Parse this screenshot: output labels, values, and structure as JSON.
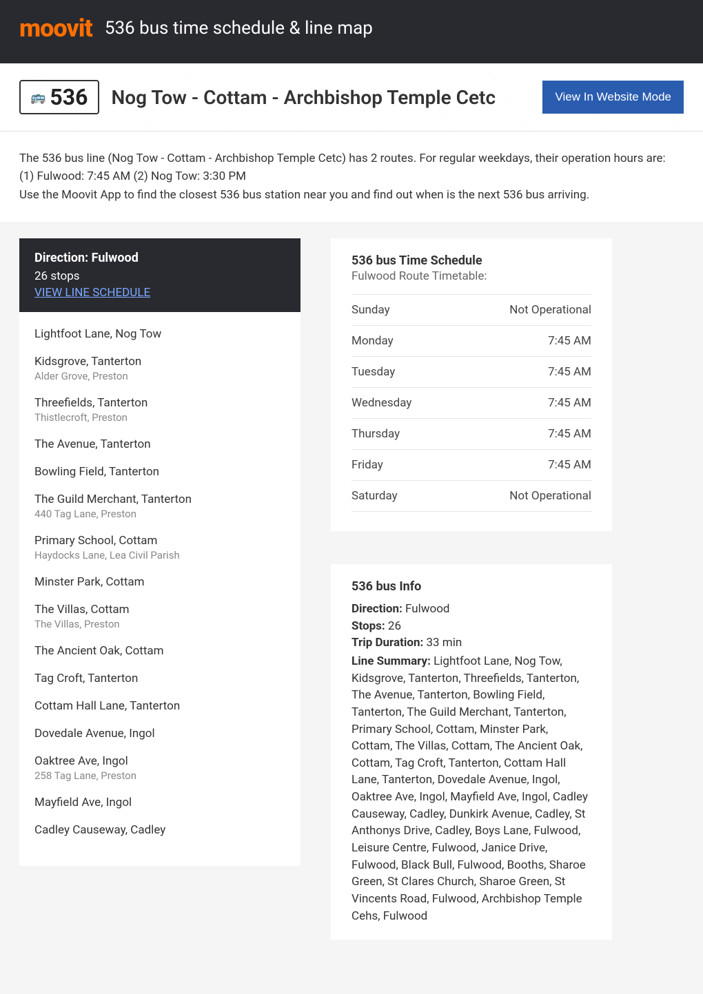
{
  "colors": {
    "header_bg": "#292a30",
    "logo": "#ff6f00",
    "btn_bg": "#2a5db0",
    "link": "#7aa8ff",
    "text": "#333333",
    "muted": "#888888",
    "border": "#e5e5e5",
    "page_bg": "#f5f5f5",
    "white": "#ffffff"
  },
  "header": {
    "logo_text": "moovit",
    "title": "536 bus time schedule & line map"
  },
  "subheader": {
    "route_number": "536",
    "route_name": "Nog Tow - Cottam - Archbishop Temple Cetc",
    "website_btn": "View In Website Mode"
  },
  "intro": {
    "p1": "The 536 bus line (Nog Tow - Cottam - Archbishop Temple Cetc) has 2 routes. For regular weekdays, their operation hours are:",
    "p2": "(1) Fulwood: 7:45 AM (2) Nog Tow: 3:30 PM",
    "p3": "Use the Moovit App to find the closest 536 bus station near you and find out when is the next 536 bus arriving."
  },
  "direction_card": {
    "title": "Direction: Fulwood",
    "stops": "26 stops",
    "link": "VIEW LINE SCHEDULE"
  },
  "stops": [
    {
      "name": "Lightfoot Lane, Nog Tow",
      "sub": ""
    },
    {
      "name": "Kidsgrove, Tanterton",
      "sub": "Alder Grove, Preston"
    },
    {
      "name": "Threefields, Tanterton",
      "sub": "Thistlecroft, Preston"
    },
    {
      "name": "The Avenue, Tanterton",
      "sub": ""
    },
    {
      "name": "Bowling Field, Tanterton",
      "sub": ""
    },
    {
      "name": "The Guild Merchant, Tanterton",
      "sub": "440 Tag Lane, Preston"
    },
    {
      "name": "Primary School, Cottam",
      "sub": "Haydocks Lane, Lea Civil Parish"
    },
    {
      "name": "Minster Park, Cottam",
      "sub": ""
    },
    {
      "name": "The Villas, Cottam",
      "sub": "The Villas, Preston"
    },
    {
      "name": "The Ancient Oak, Cottam",
      "sub": ""
    },
    {
      "name": "Tag Croft, Tanterton",
      "sub": ""
    },
    {
      "name": "Cottam Hall Lane, Tanterton",
      "sub": ""
    },
    {
      "name": "Dovedale Avenue, Ingol",
      "sub": ""
    },
    {
      "name": "Oaktree Ave, Ingol",
      "sub": "258 Tag Lane, Preston"
    },
    {
      "name": "Mayfield Ave, Ingol",
      "sub": ""
    },
    {
      "name": "Cadley Causeway, Cadley",
      "sub": ""
    }
  ],
  "schedule": {
    "title": "536 bus Time Schedule",
    "subtitle": "Fulwood Route Timetable:",
    "rows": [
      {
        "day": "Sunday",
        "time": "Not Operational"
      },
      {
        "day": "Monday",
        "time": "7:45 AM"
      },
      {
        "day": "Tuesday",
        "time": "7:45 AM"
      },
      {
        "day": "Wednesday",
        "time": "7:45 AM"
      },
      {
        "day": "Thursday",
        "time": "7:45 AM"
      },
      {
        "day": "Friday",
        "time": "7:45 AM"
      },
      {
        "day": "Saturday",
        "time": "Not Operational"
      }
    ]
  },
  "info": {
    "title": "536 bus Info",
    "direction_label": "Direction:",
    "direction_val": " Fulwood",
    "stops_label": "Stops:",
    "stops_val": " 26",
    "duration_label": "Trip Duration:",
    "duration_val": " 33 min",
    "summary_label": "Line Summary:",
    "summary_val": " Lightfoot Lane, Nog Tow, Kidsgrove, Tanterton, Threefields, Tanterton, The Avenue, Tanterton, Bowling Field, Tanterton, The Guild Merchant, Tanterton, Primary School, Cottam, Minster Park, Cottam, The Villas, Cottam, The Ancient Oak, Cottam, Tag Croft, Tanterton, Cottam Hall Lane, Tanterton, Dovedale Avenue, Ingol, Oaktree Ave, Ingol, Mayfield Ave, Ingol, Cadley Causeway, Cadley, Dunkirk Avenue, Cadley, St Anthonys Drive, Cadley, Boys Lane, Fulwood, Leisure Centre, Fulwood, Janice Drive, Fulwood, Black Bull, Fulwood, Booths, Sharoe Green, St Clares Church, Sharoe Green, St Vincents Road, Fulwood, Archbishop Temple Cehs, Fulwood"
  }
}
